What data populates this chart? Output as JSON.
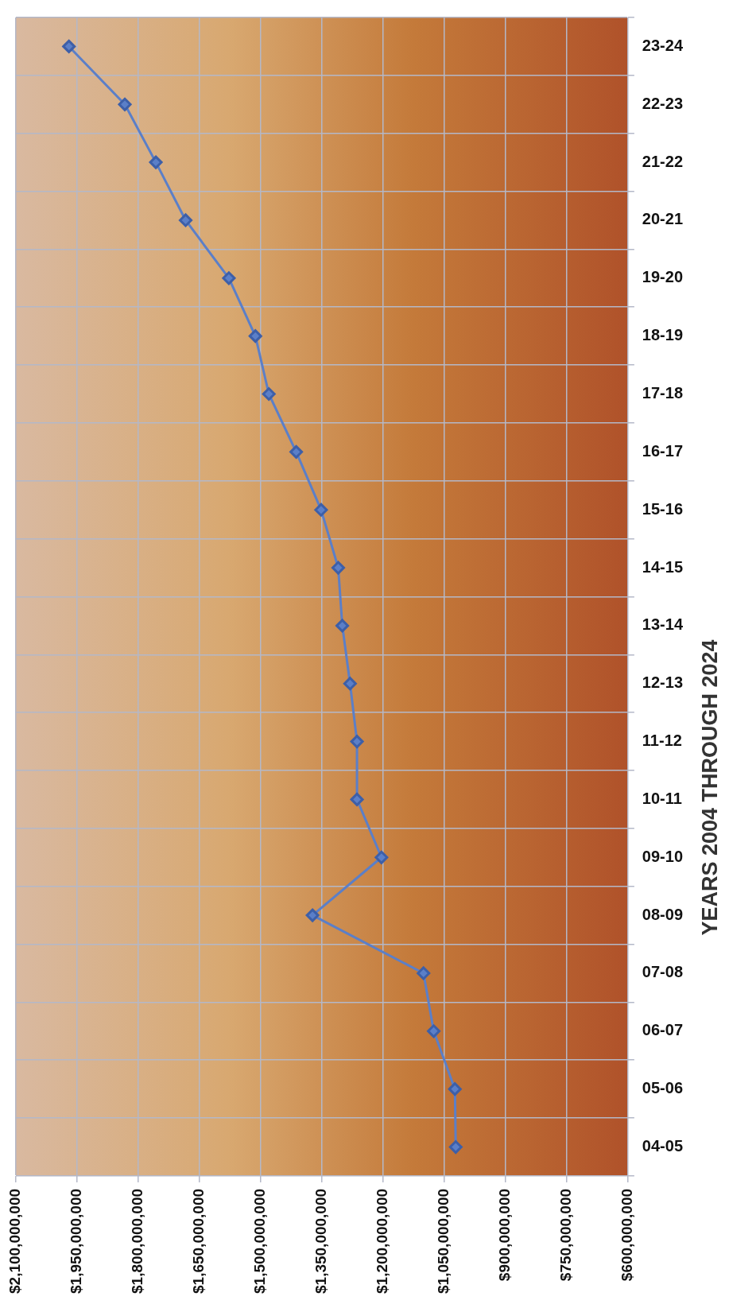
{
  "chart_data": {
    "type": "line",
    "orientation": "horizontal",
    "ylabel": "YEARS 2004 THROUGH 2024",
    "categories": [
      "23-24",
      "22-23",
      "21-22",
      "20-21",
      "19-20",
      "18-19",
      "17-18",
      "16-17",
      "15-16",
      "14-15",
      "13-14",
      "12-13",
      "11-12",
      "10-11",
      "09-10",
      "08-09",
      "07-08",
      "06-07",
      "05-06",
      "04-05"
    ],
    "series": [
      {
        "color": "#5b7fc8",
        "values": [
          1970000000,
          1833000000,
          1757000000,
          1684000000,
          1578000000,
          1513000000,
          1480000000,
          1413000000,
          1352000000,
          1310000000,
          1300000000,
          1281000000,
          1264000000,
          1264000000,
          1204000000,
          1373000000,
          1101000000,
          1076000000,
          1024000000,
          1022000000
        ]
      }
    ],
    "xlim": [
      2100000000,
      600000000
    ],
    "xticks": [
      {
        "value": 2100000000,
        "label": "$2,100,000,000"
      },
      {
        "value": 1950000000,
        "label": "$1,950,000,000"
      },
      {
        "value": 1800000000,
        "label": "$1,800,000,000"
      },
      {
        "value": 1650000000,
        "label": "$1,650,000,000"
      },
      {
        "value": 1500000000,
        "label": "$1,500,000,000"
      },
      {
        "value": 1350000000,
        "label": "$1,350,000,000"
      },
      {
        "value": 1200000000,
        "label": "$1,200,000,000"
      },
      {
        "value": 1050000000,
        "label": "$1,050,000,000"
      },
      {
        "value": 900000000,
        "label": "$900,000,000"
      },
      {
        "value": 750000000,
        "label": "$750,000,000"
      },
      {
        "value": 600000000,
        "label": "$600,000,000"
      }
    ],
    "grid": true,
    "legend": false,
    "marker": "diamond",
    "line_style": "solid"
  }
}
